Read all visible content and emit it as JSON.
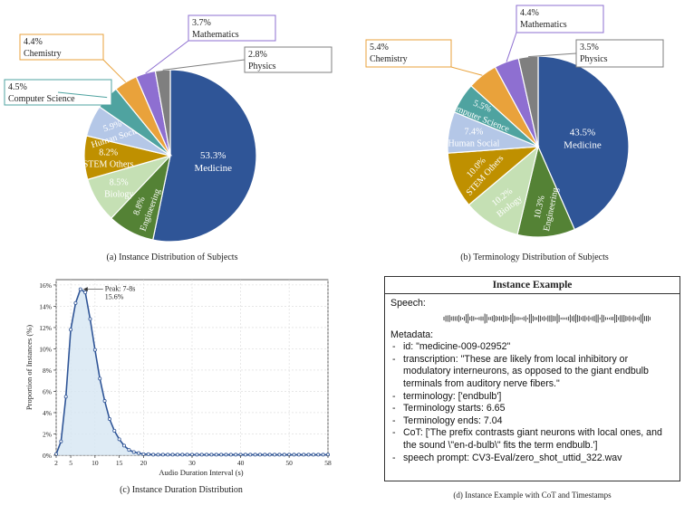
{
  "chart_data": [
    {
      "type": "pie",
      "title": "",
      "caption": "(a) Instance Distribution of Subjects",
      "slices": [
        {
          "label": "Medicine",
          "value": 53.3,
          "text": "53.3%",
          "color": "#2f5597"
        },
        {
          "label": "Engineering",
          "value": 8.8,
          "text": "8.8%",
          "color": "#548235"
        },
        {
          "label": "Biology",
          "value": 8.5,
          "text": "8.5%",
          "color": "#c5e0b4"
        },
        {
          "label": "STEM Others",
          "value": 8.2,
          "text": "8.2%",
          "color": "#bf9000"
        },
        {
          "label": "Human Social",
          "value": 5.9,
          "text": "5.9%",
          "color": "#b4c7e7"
        },
        {
          "label": "Computer Science",
          "value": 4.5,
          "text": "4.5%",
          "color": "#4fa3a0"
        },
        {
          "label": "Chemistry",
          "value": 4.4,
          "text": "4.4%",
          "color": "#e9a23b"
        },
        {
          "label": "Mathematics",
          "value": 3.7,
          "text": "3.7%",
          "color": "#8e6fd1"
        },
        {
          "label": "Physics",
          "value": 2.8,
          "text": "2.8%",
          "color": "#7f7f7f"
        }
      ]
    },
    {
      "type": "pie",
      "title": "",
      "caption": "(b) Terminology Distribution of Subjects",
      "slices": [
        {
          "label": "Medicine",
          "value": 43.5,
          "text": "43.5%",
          "color": "#2f5597"
        },
        {
          "label": "Engineering",
          "value": 10.3,
          "text": "10.3%",
          "color": "#548235"
        },
        {
          "label": "Biology",
          "value": 10.2,
          "text": "10.2%",
          "color": "#c5e0b4"
        },
        {
          "label": "STEM Others",
          "value": 10.0,
          "text": "10.0%",
          "color": "#bf9000"
        },
        {
          "label": "Human Social",
          "value": 7.4,
          "text": "7.4%",
          "color": "#b4c7e7"
        },
        {
          "label": "Computer Science",
          "value": 5.5,
          "text": "5.5%",
          "color": "#4fa3a0"
        },
        {
          "label": "Chemistry",
          "value": 5.4,
          "text": "5.4%",
          "color": "#e9a23b"
        },
        {
          "label": "Mathematics",
          "value": 4.4,
          "text": "4.4%",
          "color": "#8e6fd1"
        },
        {
          "label": "Physics",
          "value": 3.5,
          "text": "3.5%",
          "color": "#7f7f7f"
        }
      ]
    },
    {
      "type": "area",
      "title": "",
      "caption": "(c) Instance Duration Distribution",
      "xlabel": "Audio Duration Interval (s)",
      "ylabel": "Proportion of Instances (%)",
      "xlim": [
        2,
        58
      ],
      "ylim": [
        0,
        16.5
      ],
      "xticks": [
        2,
        5,
        10,
        15,
        20,
        30,
        40,
        50,
        58
      ],
      "yticks": [
        0,
        2,
        4,
        6,
        8,
        10,
        12,
        14,
        16
      ],
      "ytick_labels": [
        "0%",
        "2%",
        "4%",
        "6%",
        "8%",
        "10%",
        "12%",
        "14%",
        "16%"
      ],
      "grid": true,
      "line_color": "#2f5597",
      "fill_color": "#d6e6f2",
      "x": [
        2,
        3,
        4,
        5,
        6,
        7,
        8,
        9,
        10,
        11,
        12,
        13,
        14,
        15,
        16,
        17,
        18,
        19,
        20,
        21,
        22,
        23,
        24,
        25,
        26,
        27,
        28,
        29,
        30,
        31,
        32,
        33,
        34,
        35,
        36,
        37,
        38,
        39,
        40,
        41,
        42,
        43,
        44,
        45,
        46,
        47,
        48,
        49,
        50,
        51,
        52,
        53,
        54,
        55,
        56,
        57,
        58
      ],
      "y": [
        0.1,
        1.3,
        5.5,
        11.8,
        14.3,
        15.6,
        15.3,
        12.8,
        9.9,
        7.2,
        5.1,
        3.4,
        2.3,
        1.5,
        0.9,
        0.5,
        0.3,
        0.2,
        0.1,
        0.1,
        0.05,
        0.05,
        0.05,
        0.05,
        0.05,
        0.05,
        0.05,
        0.05,
        0.05,
        0.05,
        0.05,
        0.05,
        0.05,
        0.05,
        0.05,
        0.05,
        0.05,
        0.05,
        0.05,
        0.05,
        0.05,
        0.05,
        0.05,
        0.05,
        0.05,
        0.05,
        0.05,
        0.05,
        0.05,
        0.05,
        0.05,
        0.05,
        0.05,
        0.05,
        0.05,
        0.05,
        0.05
      ],
      "annotation": {
        "line1": "Peak: 7-8s",
        "line2": "15.6%",
        "x": 7,
        "y": 15.6
      }
    }
  ],
  "example": {
    "header": "Instance Example",
    "speech_label": "Speech:",
    "metadata_label": "Metadata:",
    "items": [
      "id: \"medicine-009-02952\"",
      "transcription: \"These are likely from local inhibitory or modulatory interneurons, as opposed to the giant endbulb terminals from auditory nerve fibers.\"",
      "terminology: ['endbulb']",
      "Terminology starts: 6.65",
      "Terminology ends: 7.04",
      "CoT: ['The prefix contrasts giant neurons with local ones, and the sound \\\"en-d-bulb\\\" fits the term endbulb.']",
      "speech prompt: CV3-Eval/zero_shot_uttid_322.wav"
    ],
    "caption": "(d) Instance Example with CoT and Timestamps"
  }
}
